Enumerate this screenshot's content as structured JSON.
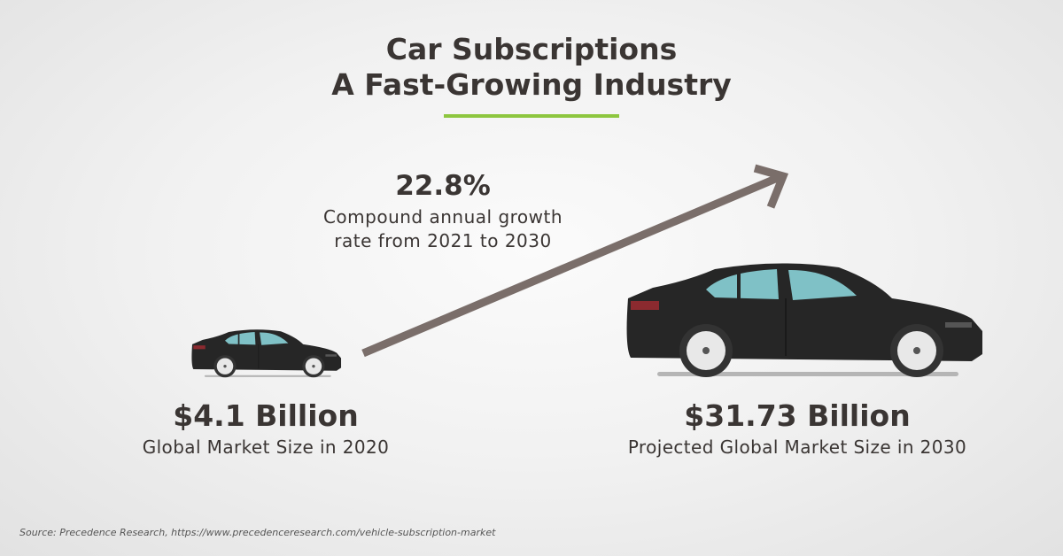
{
  "title": {
    "line1": "Car Subscriptions",
    "line2": "A Fast-Growing Industry"
  },
  "growth": {
    "value": "22.8%",
    "line1": "Compound annual growth",
    "line2": "rate from 2021 to 2030"
  },
  "start": {
    "value": "$4.1 Billion",
    "label": "Global Market Size in 2020"
  },
  "end": {
    "value": "$31.73 Billion",
    "label": "Projected Global Market Size in 2030"
  },
  "source": "Source: Precedence Research, https://www.precedenceresearch.com/vehicle-subscription-market",
  "colors": {
    "accent": "#8dc63f",
    "arrow": "#7a6e6a",
    "text": "#3a3533",
    "car": "#262626",
    "glass": "#7fc1c6"
  },
  "icons": [
    "car-icon",
    "growth-arrow-icon"
  ]
}
